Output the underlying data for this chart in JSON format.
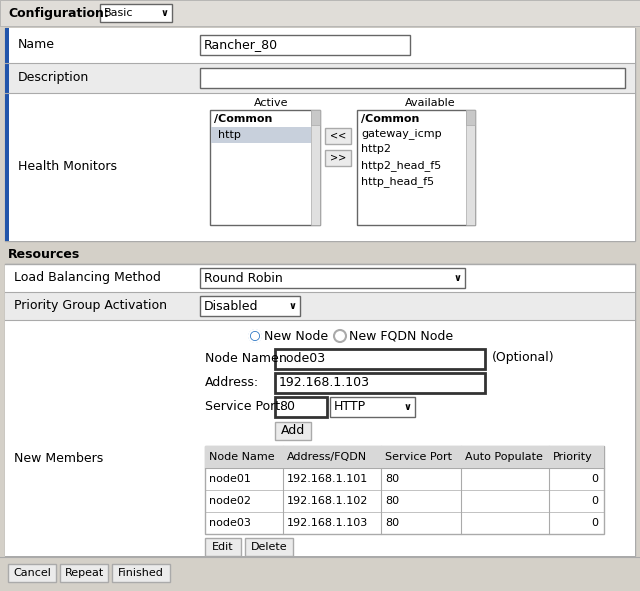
{
  "bg_color": "#d4d0c8",
  "white": "#ffffff",
  "light_gray": "#ebebeb",
  "mid_gray": "#c8c8c8",
  "dark_gray": "#888888",
  "blue_radio": "#1a6bbf",
  "border_color": "#aaaaaa",
  "dark_border": "#666666",
  "header_bg": "#e0ddd8",
  "table_header_bg": "#d8d8d8",
  "selected_row_bg": "#c8d0dc",
  "title": "Configuration:",
  "config_value": "Basic",
  "name_label": "Name",
  "name_value": "Rancher_80",
  "desc_label": "Description",
  "health_label": "Health Monitors",
  "active_header": "Active",
  "available_header": "Available",
  "active_common": "/Common",
  "active_item": "http",
  "avail_common": "/Common",
  "avail_items": [
    "gateway_icmp",
    "http2",
    "http2_head_f5",
    "http_head_f5"
  ],
  "resources_label": "Resources",
  "lb_label": "Load Balancing Method",
  "lb_value": "Round Robin",
  "pga_label": "Priority Group Activation",
  "pga_value": "Disabled",
  "new_members_label": "New Members",
  "radio1": "New Node",
  "radio2": "New FQDN Node",
  "node_name_label": "Node Name:",
  "node_name_value": "node03",
  "optional_label": "(Optional)",
  "address_label": "Address:",
  "address_value": "192.168.1.103",
  "service_port_label": "Service Port:",
  "service_port_value": "80",
  "http_value": "HTTP",
  "add_btn": "Add",
  "table_headers": [
    "Node Name",
    "Address/FQDN",
    "Service Port",
    "Auto Populate",
    "Priority"
  ],
  "table_rows": [
    [
      "node01",
      "192.168.1.101",
      "80",
      "",
      "0"
    ],
    [
      "node02",
      "192.168.1.102",
      "80",
      "",
      "0"
    ],
    [
      "node03",
      "192.168.1.103",
      "80",
      "",
      "0"
    ]
  ],
  "edit_btn": "Edit",
  "delete_btn": "Delete",
  "cancel_btn": "Cancel",
  "repeat_btn": "Repeat",
  "finished_btn": "Finished"
}
